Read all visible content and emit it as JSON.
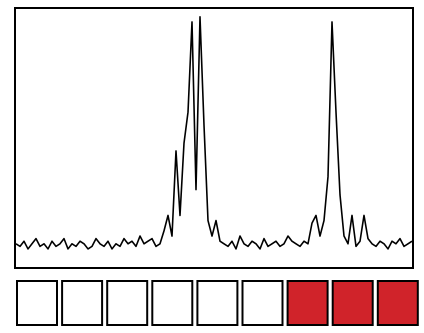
{
  "chart_data": {
    "type": "line",
    "values": [
      9,
      8,
      10,
      7,
      9,
      11,
      8,
      9,
      7,
      10,
      8,
      9,
      11,
      7,
      9,
      8,
      10,
      9,
      7,
      8,
      11,
      9,
      8,
      10,
      7,
      9,
      8,
      11,
      9,
      10,
      8,
      12,
      9,
      10,
      11,
      8,
      9,
      14,
      20,
      12,
      45,
      20,
      48,
      60,
      95,
      30,
      97,
      55,
      18,
      12,
      18,
      10,
      9,
      8,
      10,
      7,
      12,
      9,
      8,
      10,
      9,
      7,
      11,
      8,
      9,
      10,
      8,
      9,
      12,
      10,
      9,
      8,
      10,
      9,
      17,
      20,
      12,
      18,
      35,
      95,
      60,
      28,
      12,
      9,
      20,
      8,
      10,
      20,
      11,
      9,
      8,
      10,
      9,
      7,
      10,
      9,
      11,
      8,
      9,
      10
    ],
    "color": "#000000",
    "ylim": [
      0,
      100
    ],
    "cells": [
      "#ffffff",
      "#ffffff",
      "#ffffff",
      "#ffffff",
      "#ffffff",
      "#ffffff",
      "#d0232a",
      "#d0232a",
      "#d0232a"
    ]
  }
}
